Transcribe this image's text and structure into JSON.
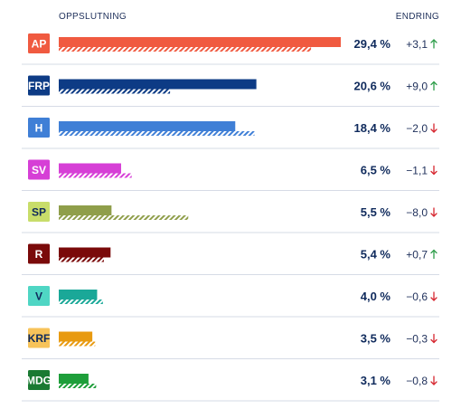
{
  "header": {
    "left": "OPPSLUTNING",
    "right": "ENDRING"
  },
  "colors": {
    "up_arrow": "#2e9e4a",
    "down_arrow": "#d6262f",
    "divider": "#d6dbe6"
  },
  "chart_data": {
    "type": "bar",
    "xlim": [
      0,
      29.4
    ],
    "categories": [
      "AP",
      "FRP",
      "H",
      "SV",
      "SP",
      "R",
      "V",
      "KRF",
      "MDG"
    ],
    "series": [
      {
        "values": [
          29.4,
          20.6,
          18.4,
          6.5,
          5.5,
          5.4,
          4.0,
          3.5,
          3.1
        ]
      },
      {
        "values": [
          26.3,
          11.6,
          20.4,
          7.6,
          13.5,
          4.7,
          4.6,
          3.8,
          3.9
        ]
      }
    ],
    "rows": [
      {
        "party": "AP",
        "pct": "29,4 %",
        "change": "+3,1",
        "dir": "up",
        "color": "#f05a40",
        "badge_text": "#ffffff"
      },
      {
        "party": "FRP",
        "pct": "20,6 %",
        "change": "+9,0",
        "dir": "up",
        "color": "#0d3b85",
        "badge_text": "#ffffff"
      },
      {
        "party": "H",
        "pct": "18,4 %",
        "change": "−2,0",
        "dir": "down",
        "color": "#3f7fd6",
        "badge_text": "#ffffff"
      },
      {
        "party": "SV",
        "pct": "6,5 %",
        "change": "−1,1",
        "dir": "down",
        "color": "#d63fd6",
        "badge_text": "#ffffff"
      },
      {
        "party": "SP",
        "pct": "5,5 %",
        "change": "−8,0",
        "dir": "down",
        "color": "#8f9e4a",
        "badge_text": "#0f2a5c",
        "badge_bg": "#c8dd6a"
      },
      {
        "party": "R",
        "pct": "5,4 %",
        "change": "+0,7",
        "dir": "up",
        "color": "#7a0a0a",
        "badge_text": "#ffffff"
      },
      {
        "party": "V",
        "pct": "4,0 %",
        "change": "−0,6",
        "dir": "down",
        "color": "#1aa898",
        "badge_text": "#0f2a5c",
        "badge_bg": "#4fd6c4"
      },
      {
        "party": "KRF",
        "pct": "3,5 %",
        "change": "−0,3",
        "dir": "down",
        "color": "#e89a10",
        "badge_text": "#0f2a5c",
        "badge_bg": "#f7c35a"
      },
      {
        "party": "MDG",
        "pct": "3,1 %",
        "change": "−0,8",
        "dir": "down",
        "color": "#1e9e3a",
        "badge_text": "#ffffff",
        "badge_bg": "#1a7a32"
      }
    ]
  }
}
